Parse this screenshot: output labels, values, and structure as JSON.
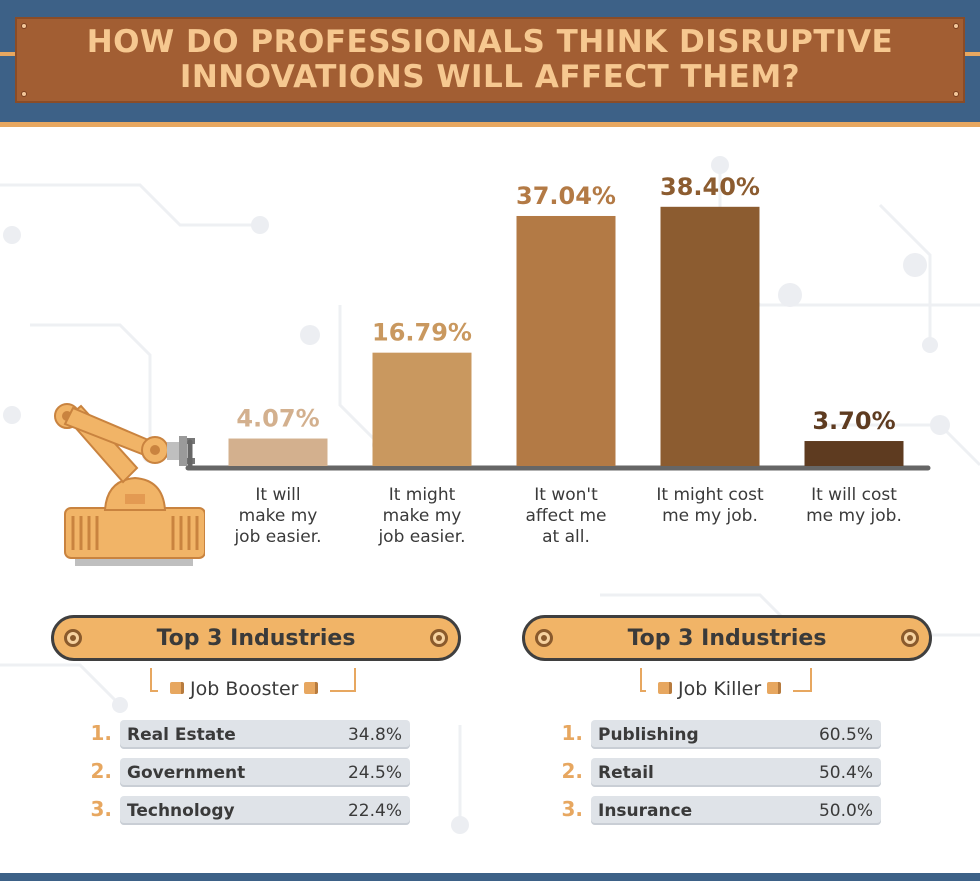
{
  "header": {
    "title_line1": "HOW DO PROFESSIONALS THINK DISRUPTIVE",
    "title_line2": "INNOVATIONS WILL AFFECT THEM?"
  },
  "chart_data": {
    "type": "bar",
    "categories": [
      "It will make my job easier.",
      "It might make my job easier.",
      "It won't affect me at all.",
      "It might cost me my job.",
      "It will cost me my job."
    ],
    "category_lines": [
      [
        "It will",
        "make my",
        "job easier."
      ],
      [
        "It might",
        "make my",
        "job easier."
      ],
      [
        "It won't",
        "affect me",
        "at all."
      ],
      [
        "It might cost",
        "me my job."
      ],
      [
        "It will cost",
        "me my job."
      ]
    ],
    "values": [
      4.07,
      16.79,
      37.04,
      38.4,
      3.7
    ],
    "value_labels": [
      "4.07%",
      "16.79%",
      "37.04%",
      "38.40%",
      "3.70%"
    ],
    "colors": [
      "#d3b08e",
      "#c9985f",
      "#b37a45",
      "#8c5c30",
      "#5e3b20"
    ],
    "label_colors": [
      "#d3b08e",
      "#c9985f",
      "#b37a45",
      "#8c5c30",
      "#5e3b20"
    ],
    "ylim": [
      0,
      40
    ],
    "grid": false,
    "title": "HOW DO PROFESSIONALS THINK DISRUPTIVE INNOVATIONS WILL AFFECT THEM?"
  },
  "booster": {
    "title": "Top 3 Industries",
    "subtitle": "Job Booster",
    "items": [
      {
        "rank": "1.",
        "name": "Real Estate",
        "value": "34.8%"
      },
      {
        "rank": "2.",
        "name": "Government",
        "value": "24.5%"
      },
      {
        "rank": "3.",
        "name": "Technology",
        "value": "22.4%"
      }
    ]
  },
  "killer": {
    "title": "Top 3 Industries",
    "subtitle": "Job Killer",
    "items": [
      {
        "rank": "1.",
        "name": "Publishing",
        "value": "60.5%"
      },
      {
        "rank": "2.",
        "name": "Retail",
        "value": "50.4%"
      },
      {
        "rank": "3.",
        "name": "Insurance",
        "value": "50.0%"
      }
    ]
  },
  "colors": {
    "header_blue": "#3d6187",
    "plate_brown": "#a25e33",
    "title_text": "#f6c890",
    "accent_orange": "#e7a760",
    "belt_orange": "#f1b467",
    "pill_gray": "#dfe3e8"
  },
  "icons": {
    "robot": "robot-arm-icon",
    "belt_wheel": "gear-icon",
    "clip": "bracket-clip-icon"
  }
}
